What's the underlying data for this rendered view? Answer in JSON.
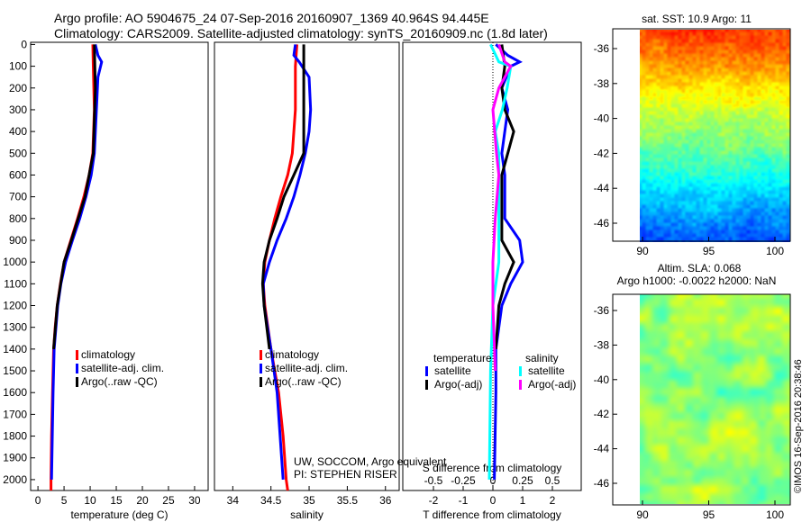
{
  "title_line1": "Argo profile: AO 5904675_24 07-Sep-2016 20160907_1369 40.964S 94.445E",
  "title_line2": "Climatology: CARS2009. Satellite-adjusted climatology: synTS_20160909.nc (1.8d later)",
  "stamp": "©IMOS 16-Sep-2016 20:38:46",
  "credit_line1": "UW, SOCCOM, Argo equivalent",
  "credit_line2": "PI: STEPHEN RISER",
  "colors": {
    "climatology": "#ff0000",
    "satellite": "#0000ff",
    "argo": "#000000",
    "sal_satellite": "#00ffff",
    "sal_argo": "#ff00ff"
  },
  "chart_data": [
    {
      "type": "line",
      "xlabel": "temperature (deg C)",
      "ylabel": "",
      "xlim": [
        -1.4,
        32.6
      ],
      "ylim": [
        2050,
        -10
      ],
      "xticks": [
        0,
        5,
        10,
        15,
        20,
        25,
        30
      ],
      "yticks": [
        0,
        100,
        200,
        300,
        400,
        500,
        600,
        700,
        800,
        900,
        1000,
        1100,
        1200,
        1300,
        1400,
        1500,
        1600,
        1700,
        1800,
        1900,
        2000
      ],
      "legend": [
        "climatology",
        "satellite-adj. clim.",
        "Argo(..raw -QC)"
      ],
      "series": [
        {
          "name": "climatology",
          "color": "#ff0000",
          "depth": [
            0,
            100,
            300,
            500,
            600,
            700,
            800,
            900,
            1000,
            1100,
            1200,
            1300,
            1400,
            1600,
            1800,
            2000,
            2050
          ],
          "values": [
            10.5,
            10.6,
            10.8,
            10.5,
            9.8,
            8.8,
            7.6,
            6.3,
            5.0,
            4.3,
            3.7,
            3.3,
            3.0,
            2.8,
            2.6,
            2.5,
            2.5
          ]
        },
        {
          "name": "satellite-adj. clim.",
          "color": "#0000ff",
          "depth": [
            0,
            50,
            80,
            150,
            300,
            500,
            600,
            700,
            800,
            900,
            1000,
            1100,
            1200,
            1400,
            1600,
            2000
          ],
          "values": [
            11.0,
            11.5,
            12.2,
            11.5,
            11.2,
            10.8,
            10.2,
            9.2,
            8.0,
            6.6,
            5.3,
            4.4,
            3.8,
            3.1,
            2.9,
            2.6
          ]
        },
        {
          "name": "Argo(..raw -QC)",
          "color": "#000000",
          "depth": [
            0,
            200,
            500,
            700,
            900,
            1000,
            1200,
            1400
          ],
          "values": [
            10.8,
            11.0,
            10.6,
            9.0,
            6.4,
            5.0,
            3.7,
            3.0
          ]
        }
      ]
    },
    {
      "type": "line",
      "xlabel": "salinity",
      "xlim": [
        33.76,
        36.18
      ],
      "ylim": [
        2050,
        -10
      ],
      "xticks": [
        34,
        34.5,
        35,
        35.5,
        36
      ],
      "legend": [
        "climatology",
        "satellite-adj. clim.",
        "Argo(..raw -QC)"
      ],
      "series": [
        {
          "name": "climatology",
          "color": "#ff0000",
          "depth": [
            0,
            100,
            300,
            500,
            600,
            700,
            800,
            900,
            1000,
            1100,
            1200,
            1300,
            1400,
            1500,
            1600,
            1800,
            2000,
            2050
          ],
          "values": [
            34.84,
            34.82,
            34.82,
            34.78,
            34.72,
            34.63,
            34.55,
            34.48,
            34.42,
            34.4,
            34.42,
            34.46,
            34.5,
            34.55,
            34.6,
            34.66,
            34.7,
            34.72
          ]
        },
        {
          "name": "satellite-adj. clim.",
          "color": "#0000ff",
          "depth": [
            0,
            50,
            80,
            150,
            300,
            400,
            500,
            600,
            700,
            800,
            900,
            1000,
            1100,
            1200,
            1400,
            1600,
            2000
          ],
          "values": [
            34.82,
            34.8,
            34.87,
            35.0,
            35.02,
            35.0,
            34.95,
            34.88,
            34.8,
            34.7,
            34.58,
            34.48,
            34.4,
            34.41,
            34.5,
            34.58,
            34.66
          ]
        },
        {
          "name": "Argo(..raw -QC)",
          "color": "#000000",
          "depth": [
            0,
            500,
            600,
            700,
            800,
            900,
            1000,
            1100,
            1200,
            1400
          ],
          "values": [
            34.93,
            34.93,
            34.8,
            34.67,
            34.58,
            34.48,
            34.41,
            34.39,
            34.41,
            34.48
          ]
        }
      ]
    },
    {
      "type": "line",
      "xlabel": "T difference from climatology",
      "xlabel2": "S difference from climatology",
      "xlim": [
        -3.03,
        2.97
      ],
      "ylim": [
        2050,
        -10
      ],
      "xticks": [
        -2,
        -1,
        0,
        1,
        2
      ],
      "xticks2": [
        "-0.5",
        "-0.25",
        "0",
        "0.25",
        "0.5"
      ],
      "legend_headers": [
        "temperature",
        "salinity"
      ],
      "legend": [
        "satellite",
        "Argo(-adj)",
        "satellite",
        "Argo(-adj)"
      ],
      "series": [
        {
          "name": "T satellite",
          "color": "#0000ff",
          "depth": [
            0,
            50,
            80,
            100,
            200,
            300,
            500,
            600,
            700,
            800,
            900,
            1000,
            1100,
            1200,
            1400,
            1600,
            2000
          ],
          "values": [
            0.1,
            0.5,
            0.9,
            0.6,
            0.3,
            0.5,
            0.3,
            0.4,
            0.4,
            0.4,
            0.9,
            1.0,
            0.6,
            0.3,
            0.1,
            0.1,
            0.05
          ]
        },
        {
          "name": "T Argo(-adj)",
          "color": "#000000",
          "depth": [
            0,
            100,
            200,
            300,
            400,
            500,
            600,
            800,
            900,
            950,
            1000,
            1100,
            1200,
            1400
          ],
          "values": [
            0.3,
            0.4,
            0.3,
            0.4,
            0.7,
            0.5,
            0.3,
            0.3,
            0.3,
            0.5,
            0.7,
            0.4,
            0.2,
            0.1
          ]
        },
        {
          "name": "S satellite",
          "color": "#00ffff",
          "depth": [
            0,
            80,
            100,
            200,
            300,
            400,
            500,
            1000,
            1200,
            1500,
            2000
          ],
          "values": [
            -0.02,
            0.05,
            0.15,
            0.12,
            0.08,
            0.02,
            0.05,
            0.05,
            0,
            -0.02,
            -0.03
          ],
          "units": "salinity"
        },
        {
          "name": "S Argo(-adj)",
          "color": "#ff00ff",
          "depth": [
            0,
            80,
            100,
            200,
            300,
            500,
            600,
            800,
            1000,
            1200,
            1500
          ],
          "values": [
            0.05,
            0.1,
            0.15,
            0.05,
            0.0,
            0.03,
            0.05,
            0.02,
            0.0,
            0.0,
            0.02
          ],
          "units": "salinity"
        }
      ]
    },
    {
      "type": "heatmap",
      "title": "sat. SST: 10.9 Argo: 11",
      "xticks": [
        90,
        95,
        100
      ],
      "yticks": [
        -36,
        -38,
        -40,
        -42,
        -44,
        -46
      ],
      "xlim": [
        88,
        101
      ],
      "ylim": [
        -47,
        -35
      ]
    },
    {
      "type": "heatmap",
      "title": "Altim. SLA: 0.068",
      "subtitle": "Argo h1000: -0.0022 h2000: NaN",
      "xticks": [
        90,
        95,
        100
      ],
      "yticks": [
        -36,
        -38,
        -40,
        -42,
        -44,
        -46
      ],
      "xlim": [
        88,
        101
      ],
      "ylim": [
        -47,
        -35
      ]
    }
  ]
}
